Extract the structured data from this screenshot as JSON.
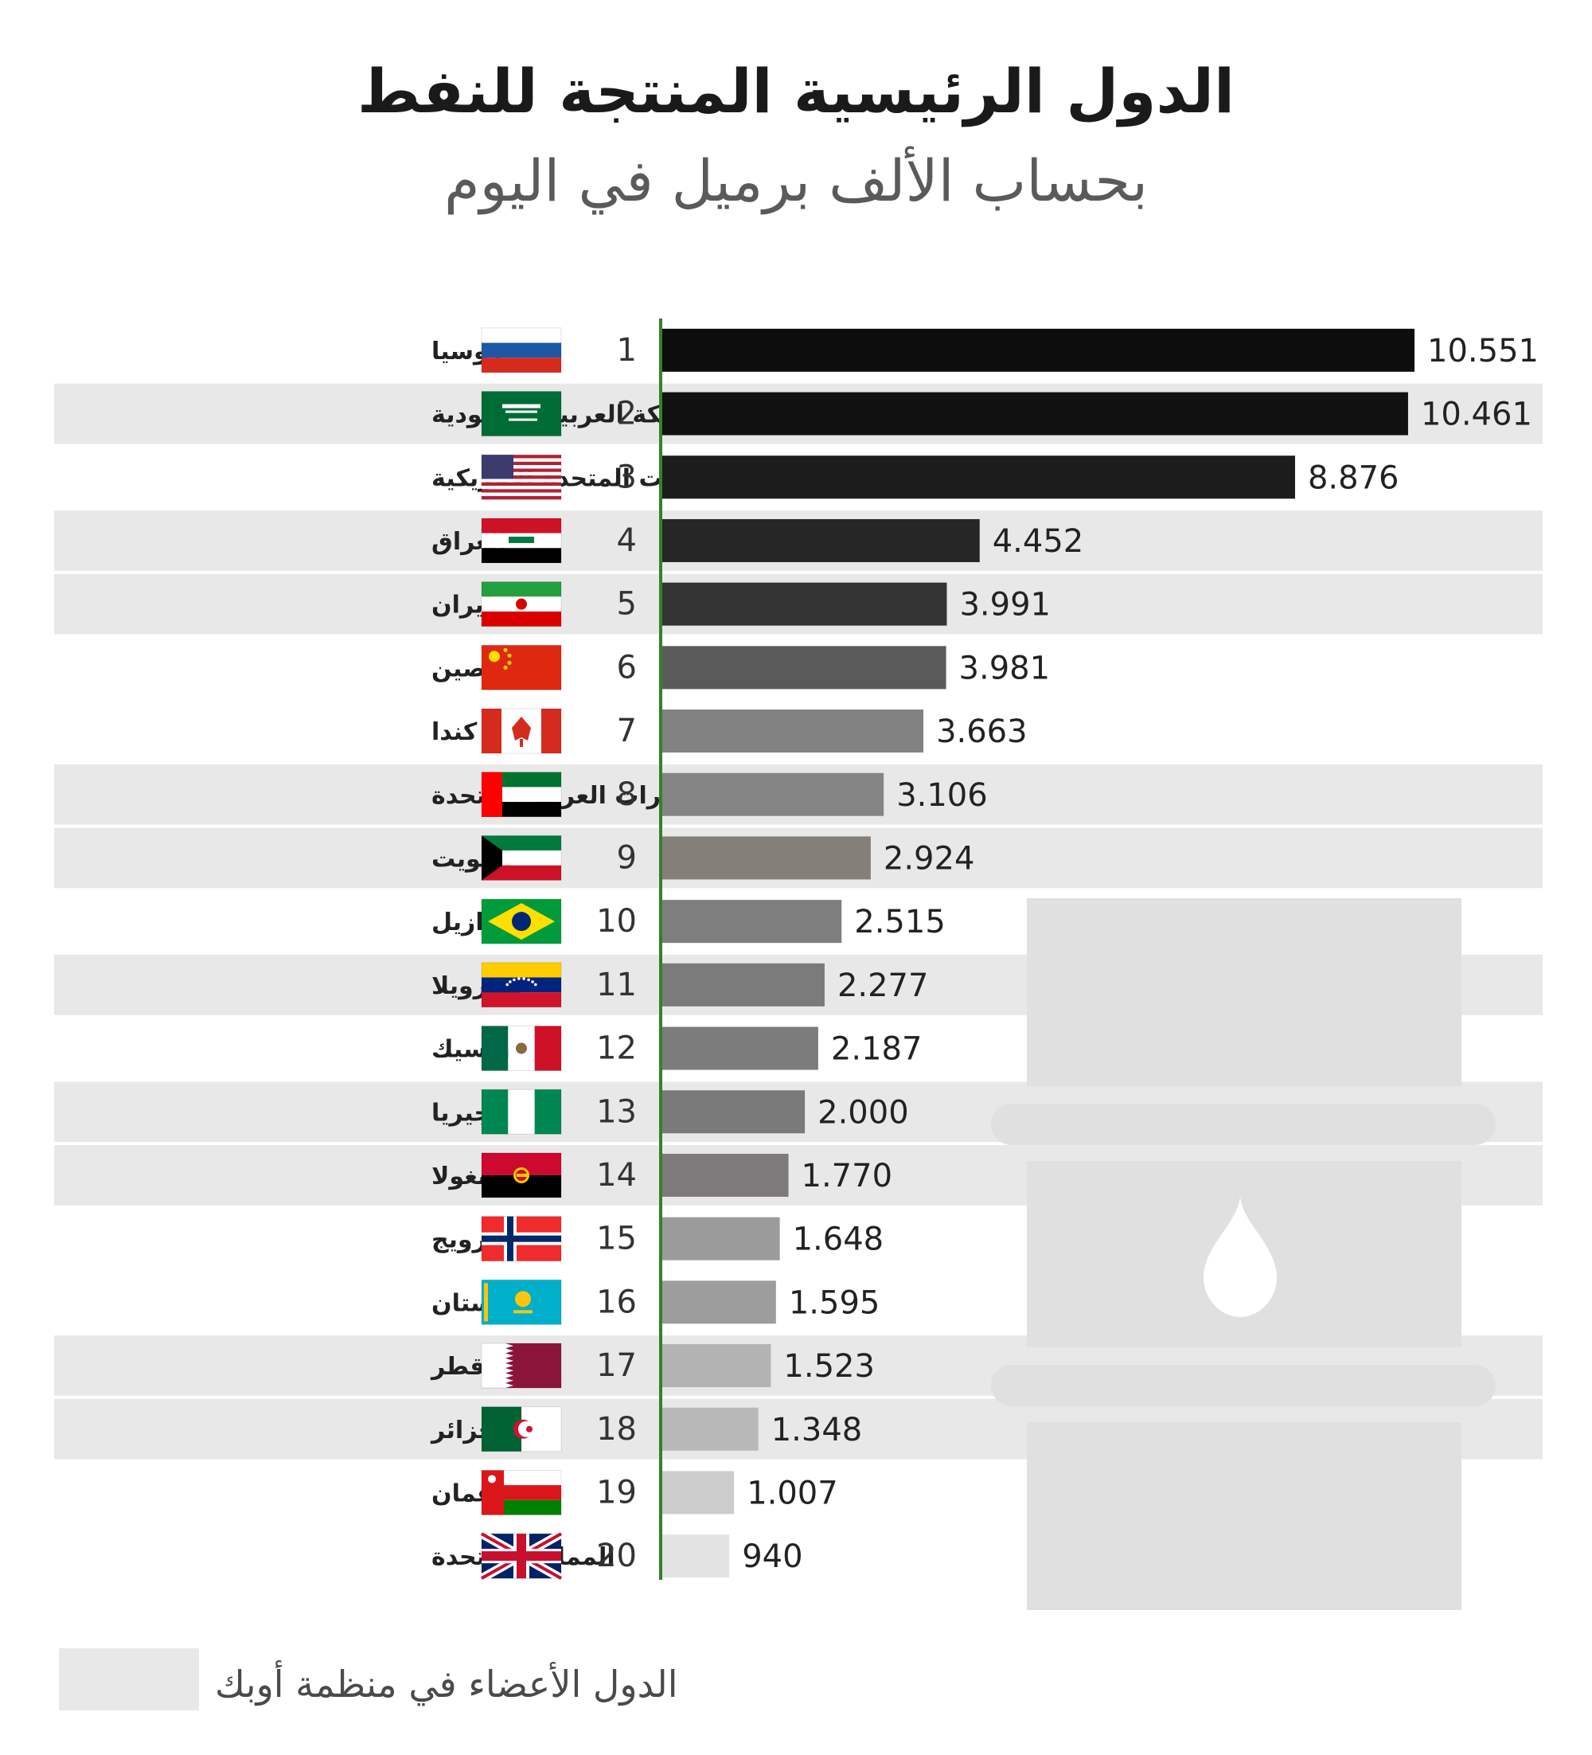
{
  "chart_data": {
    "type": "bar",
    "title": "الدول الرئيسية المنتجة للنفط",
    "subtitle": "بحساب الألف برميل في اليوم",
    "legend": {
      "label": "الدول الأعضاء في منظمة أوبك",
      "color": "#e8e8e8"
    },
    "axis_color": "#3a7d2e",
    "xlim": [
      0,
      10551
    ],
    "categories": [
      "روسيا",
      "المملكة العربية السعودية",
      "الولايات المتحدة الأمريكية",
      "العراق",
      "إيران",
      "الصين",
      "كندا",
      "الإمارات العربية المتحدة",
      "الكويت",
      "البرازيل",
      "فينزويلا",
      "المكسيك",
      "نيجيريا",
      "أنغولا",
      "النرويج",
      "كازاخستان",
      "قطر",
      "الجزائر",
      "عمان",
      "المملكة المتحدة"
    ],
    "ranks": [
      "1",
      "2",
      "3",
      "4",
      "5",
      "6",
      "7",
      "8",
      "9",
      "10",
      "11",
      "12",
      "13",
      "14",
      "15",
      "16",
      "17",
      "18",
      "19",
      "20"
    ],
    "values": [
      10551,
      10461,
      8876,
      4452,
      3991,
      3981,
      3663,
      3106,
      2924,
      2515,
      2277,
      2187,
      2000,
      1770,
      1648,
      1595,
      1523,
      1348,
      1007,
      940
    ],
    "value_labels": [
      "10.551",
      "10.461",
      "8.876",
      "4.452",
      "3.991",
      "3.981",
      "3.663",
      "3.106",
      "2.924",
      "2.515",
      "2.277",
      "2.187",
      "2.000",
      "1.770",
      "1.648",
      "1.595",
      "1.523",
      "1.348",
      "1.007",
      "940"
    ],
    "opec_member": [
      false,
      true,
      false,
      true,
      true,
      false,
      false,
      true,
      true,
      false,
      true,
      false,
      true,
      true,
      false,
      false,
      true,
      true,
      false,
      false
    ],
    "bar_colors": [
      "#0d0d0d",
      "#111111",
      "#1c1c1c",
      "#262626",
      "#333333",
      "#5a5a5a",
      "#828282",
      "#858585",
      "#848079",
      "#7e7e7e",
      "#7b7b7b",
      "#7c7c7c",
      "#7a7a7a",
      "#7c7a7a",
      "#9b9b9b",
      "#9d9d9d",
      "#b3b3b3",
      "#b8b8b8",
      "#cccccc",
      "#e3e3e3"
    ],
    "flags": [
      "russia",
      "saudi-arabia",
      "usa",
      "iraq",
      "iran",
      "china",
      "canada",
      "uae",
      "kuwait",
      "brazil",
      "venezuela",
      "mexico",
      "nigeria",
      "angola",
      "norway",
      "kazakhstan",
      "qatar",
      "algeria",
      "oman",
      "uk"
    ]
  }
}
